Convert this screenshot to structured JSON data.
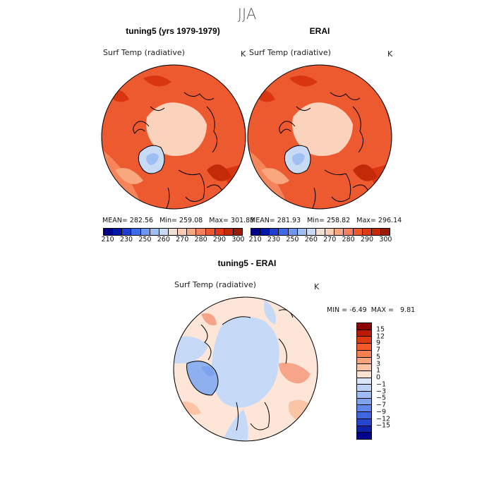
{
  "season": "JJA",
  "panels": [
    {
      "title": "tuning5 (yrs 1979-1979)",
      "variable": "Surf Temp (radiative)",
      "unit": "K",
      "mean_label": "MEAN=",
      "mean": "282.56",
      "min_label": "Min=",
      "min": "259.08",
      "max_label": "Max=",
      "max": "301.83"
    },
    {
      "title": "ERAI",
      "variable": "Surf Temp (radiative)",
      "unit": "K",
      "mean_label": "MEAN=",
      "mean": "281.93",
      "min_label": "Min=",
      "min": "258.82",
      "max_label": "Max=",
      "max": "296.14"
    }
  ],
  "abs_colorbar": {
    "colors": [
      "#00008b",
      "#0018a8",
      "#1e3fd0",
      "#3d6be8",
      "#6e98f0",
      "#9fbef2",
      "#c9daf5",
      "#f2dfd2",
      "#fccbb0",
      "#f9a77f",
      "#f5825a",
      "#ee5a30",
      "#de3a13",
      "#c22a08",
      "#9a1a02"
    ],
    "ticks": [
      "210",
      "230",
      "250",
      "260",
      "270",
      "280",
      "290",
      "300"
    ]
  },
  "diff_panel": {
    "title": "tuning5 - ERAI",
    "variable": "Surf Temp (radiative)",
    "unit": "K",
    "min_label": "MIN =",
    "min": "-6.49",
    "max_label": "MAX =",
    "max": "9.81"
  },
  "diff_colorbar": {
    "colors": [
      "#8b0000",
      "#bb1a00",
      "#de3a10",
      "#f25a2a",
      "#f6804f",
      "#f8a37a",
      "#fbc4a4",
      "#fde2cf",
      "#dbe7f8",
      "#bcd2f5",
      "#9dbcf2",
      "#7ea3ee",
      "#5f87ea",
      "#3f67e0",
      "#2346cc",
      "#0d22a8",
      "#00008b"
    ],
    "ticks": [
      "15",
      "12",
      "9",
      "7",
      "5",
      "3",
      "1",
      "0",
      "−1",
      "−3",
      "−5",
      "−7",
      "−9",
      "−12",
      "−15"
    ]
  },
  "map_colors": {
    "warm_dark": "#d9360f",
    "warm_mid": "#ee5a30",
    "warm_light": "#f6855c",
    "arctic_ocean": "#fbd2bc",
    "greenland": "#c9daf5",
    "greenland_core": "#9fbef2",
    "diff_bg": "#fde6d8",
    "diff_blue": "#c6daf7",
    "diff_blue_dark": "#8fb0ef",
    "diff_red": "#f6a58a"
  }
}
